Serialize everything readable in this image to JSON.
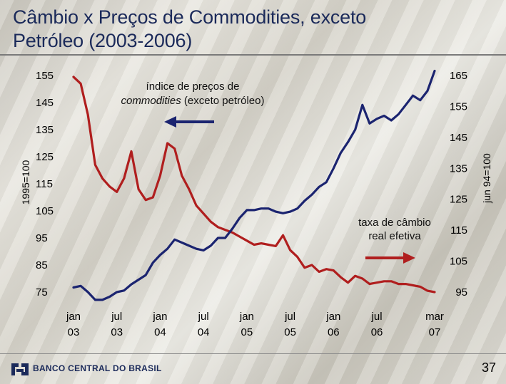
{
  "header": {
    "title_line1": "Câmbio x Preços de Commodities, exceto",
    "title_line2": "Petróleo (2003-2006)"
  },
  "footer": {
    "bank_name": "BANCO CENTRAL DO BRASIL",
    "page_number": "37"
  },
  "colors": {
    "title": "#1b2a5a",
    "commodity_series": "#b01e1e",
    "exchange_series": "#1b2470"
  },
  "chart_data": {
    "type": "line",
    "title": "",
    "x": [
      "jan 03",
      "fev 03",
      "mar 03",
      "abr 03",
      "mai 03",
      "jun 03",
      "jul 03",
      "ago 03",
      "set 03",
      "out 03",
      "nov 03",
      "dez 03",
      "jan 04",
      "fev 04",
      "mar 04",
      "abr 04",
      "mai 04",
      "jun 04",
      "jul 04",
      "ago 04",
      "set 04",
      "out 04",
      "nov 04",
      "dez 04",
      "jan 05",
      "fev 05",
      "mar 05",
      "abr 05",
      "mai 05",
      "jun 05",
      "jul 05",
      "ago 05",
      "set 05",
      "out 05",
      "nov 05",
      "dez 05",
      "jan 06",
      "fev 06",
      "mar 06",
      "abr 06",
      "mai 06",
      "jun 06",
      "jul 06",
      "ago 06",
      "set 06",
      "out 06",
      "nov 06",
      "dez 06",
      "jan 07",
      "fev 07",
      "mar 07"
    ],
    "x_tick_labels": [
      {
        "line1": "jan",
        "line2": "03"
      },
      {
        "line1": "jul",
        "line2": "03"
      },
      {
        "line1": "jan",
        "line2": "04"
      },
      {
        "line1": "jul",
        "line2": "04"
      },
      {
        "line1": "jan",
        "line2": "05"
      },
      {
        "line1": "jul",
        "line2": "05"
      },
      {
        "line1": "jan",
        "line2": "06"
      },
      {
        "line1": "jul",
        "line2": "06"
      },
      {
        "line1": "mar",
        "line2": "07"
      }
    ],
    "x_tick_index": [
      0,
      6,
      12,
      18,
      24,
      30,
      36,
      42,
      50
    ],
    "left_axis": {
      "label": "1995=100",
      "ticks": [
        75,
        85,
        95,
        105,
        115,
        125,
        135,
        145,
        155
      ],
      "range": [
        75,
        155
      ]
    },
    "right_axis": {
      "label": "jun 94=100",
      "ticks": [
        95,
        105,
        115,
        125,
        135,
        145,
        155,
        165
      ],
      "range": [
        95,
        165
      ]
    },
    "series": [
      {
        "name": "taxa de câmbio real efetiva",
        "axis": "left",
        "values": [
          154.5,
          152,
          140.5,
          122,
          117,
          114,
          112,
          117,
          127,
          113,
          109,
          110,
          118,
          130,
          128,
          118,
          113,
          107,
          104,
          101,
          99,
          98,
          97,
          95.5,
          94,
          92.5,
          93,
          92.5,
          92,
          96,
          90.5,
          88,
          84,
          85,
          82.5,
          83.5,
          83,
          80.5,
          78.5,
          81,
          80,
          78,
          78.5,
          79,
          79,
          78,
          78,
          77.5,
          77,
          75.5,
          75
        ]
      },
      {
        "name": "índice de preços de commodities (exceto petróleo)",
        "axis": "right",
        "values": [
          96.5,
          97,
          95,
          92.5,
          92.5,
          93.5,
          95,
          95.5,
          97.5,
          99,
          100.5,
          104.5,
          107,
          109,
          112,
          111,
          110,
          109,
          108.5,
          110,
          112.5,
          112.5,
          115.5,
          119,
          121.5,
          121.5,
          122,
          122,
          121,
          120.5,
          121,
          122,
          124.5,
          126.5,
          129,
          130.5,
          135,
          140,
          143.5,
          147.5,
          155.5,
          149.5,
          151,
          152,
          150.5,
          152.5,
          155.5,
          158.5,
          157,
          160,
          166.5
        ]
      }
    ],
    "annotations": [
      {
        "text_line1": "índice de preços de",
        "text_line2_italic": "commodities",
        "text_line2_rest": " (exceto petróleo)",
        "arrow": "left",
        "color": "#1b2470"
      },
      {
        "text_line1": "taxa de câmbio",
        "text_line2": "real efetiva",
        "arrow": "right",
        "color": "#b01e1e"
      }
    ],
    "grid": false,
    "legend": "none"
  }
}
